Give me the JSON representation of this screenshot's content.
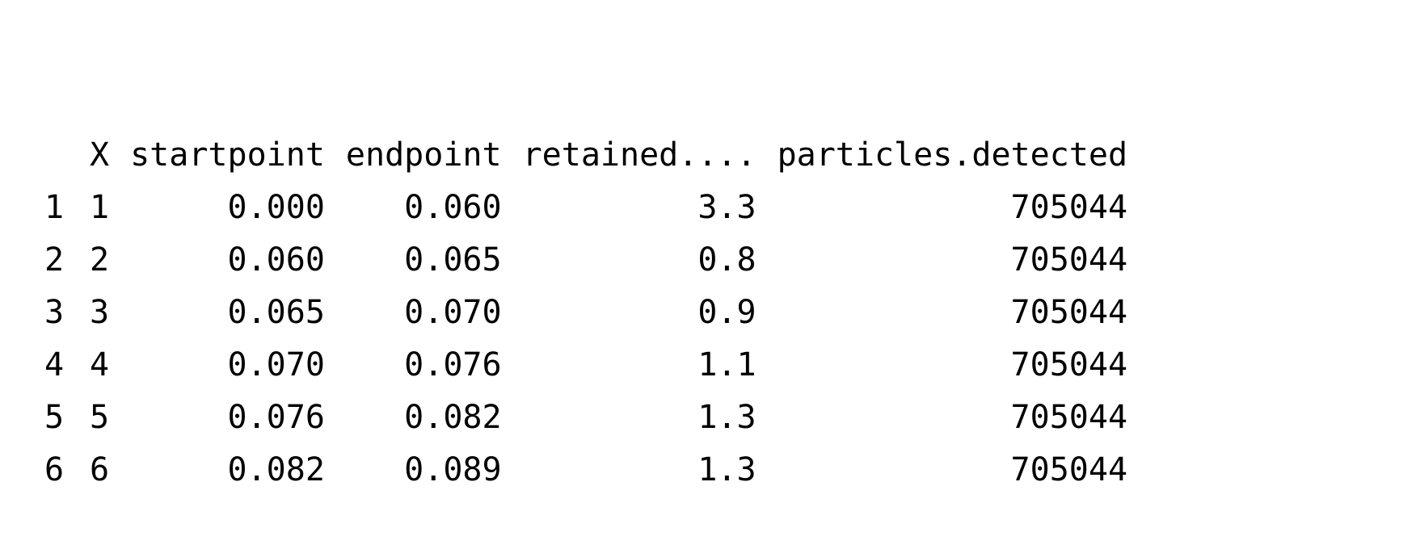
{
  "table": {
    "columns": [
      "",
      "X",
      "startpoint",
      "endpoint",
      "retained....",
      "particles.detected"
    ],
    "rows": [
      {
        "rowname": "1",
        "X": "1",
        "startpoint": "0.000",
        "endpoint": "0.060",
        "retained": "3.3",
        "particles_detected": "705044"
      },
      {
        "rowname": "2",
        "X": "2",
        "startpoint": "0.060",
        "endpoint": "0.065",
        "retained": "0.8",
        "particles_detected": "705044"
      },
      {
        "rowname": "3",
        "X": "3",
        "startpoint": "0.065",
        "endpoint": "0.070",
        "retained": "0.9",
        "particles_detected": "705044"
      },
      {
        "rowname": "4",
        "X": "4",
        "startpoint": "0.070",
        "endpoint": "0.076",
        "retained": "1.1",
        "particles_detected": "705044"
      },
      {
        "rowname": "5",
        "X": "5",
        "startpoint": "0.076",
        "endpoint": "0.082",
        "retained": "1.3",
        "particles_detected": "705044"
      },
      {
        "rowname": "6",
        "X": "6",
        "startpoint": "0.082",
        "endpoint": "0.089",
        "retained": "1.3",
        "particles_detected": "705044"
      }
    ]
  }
}
